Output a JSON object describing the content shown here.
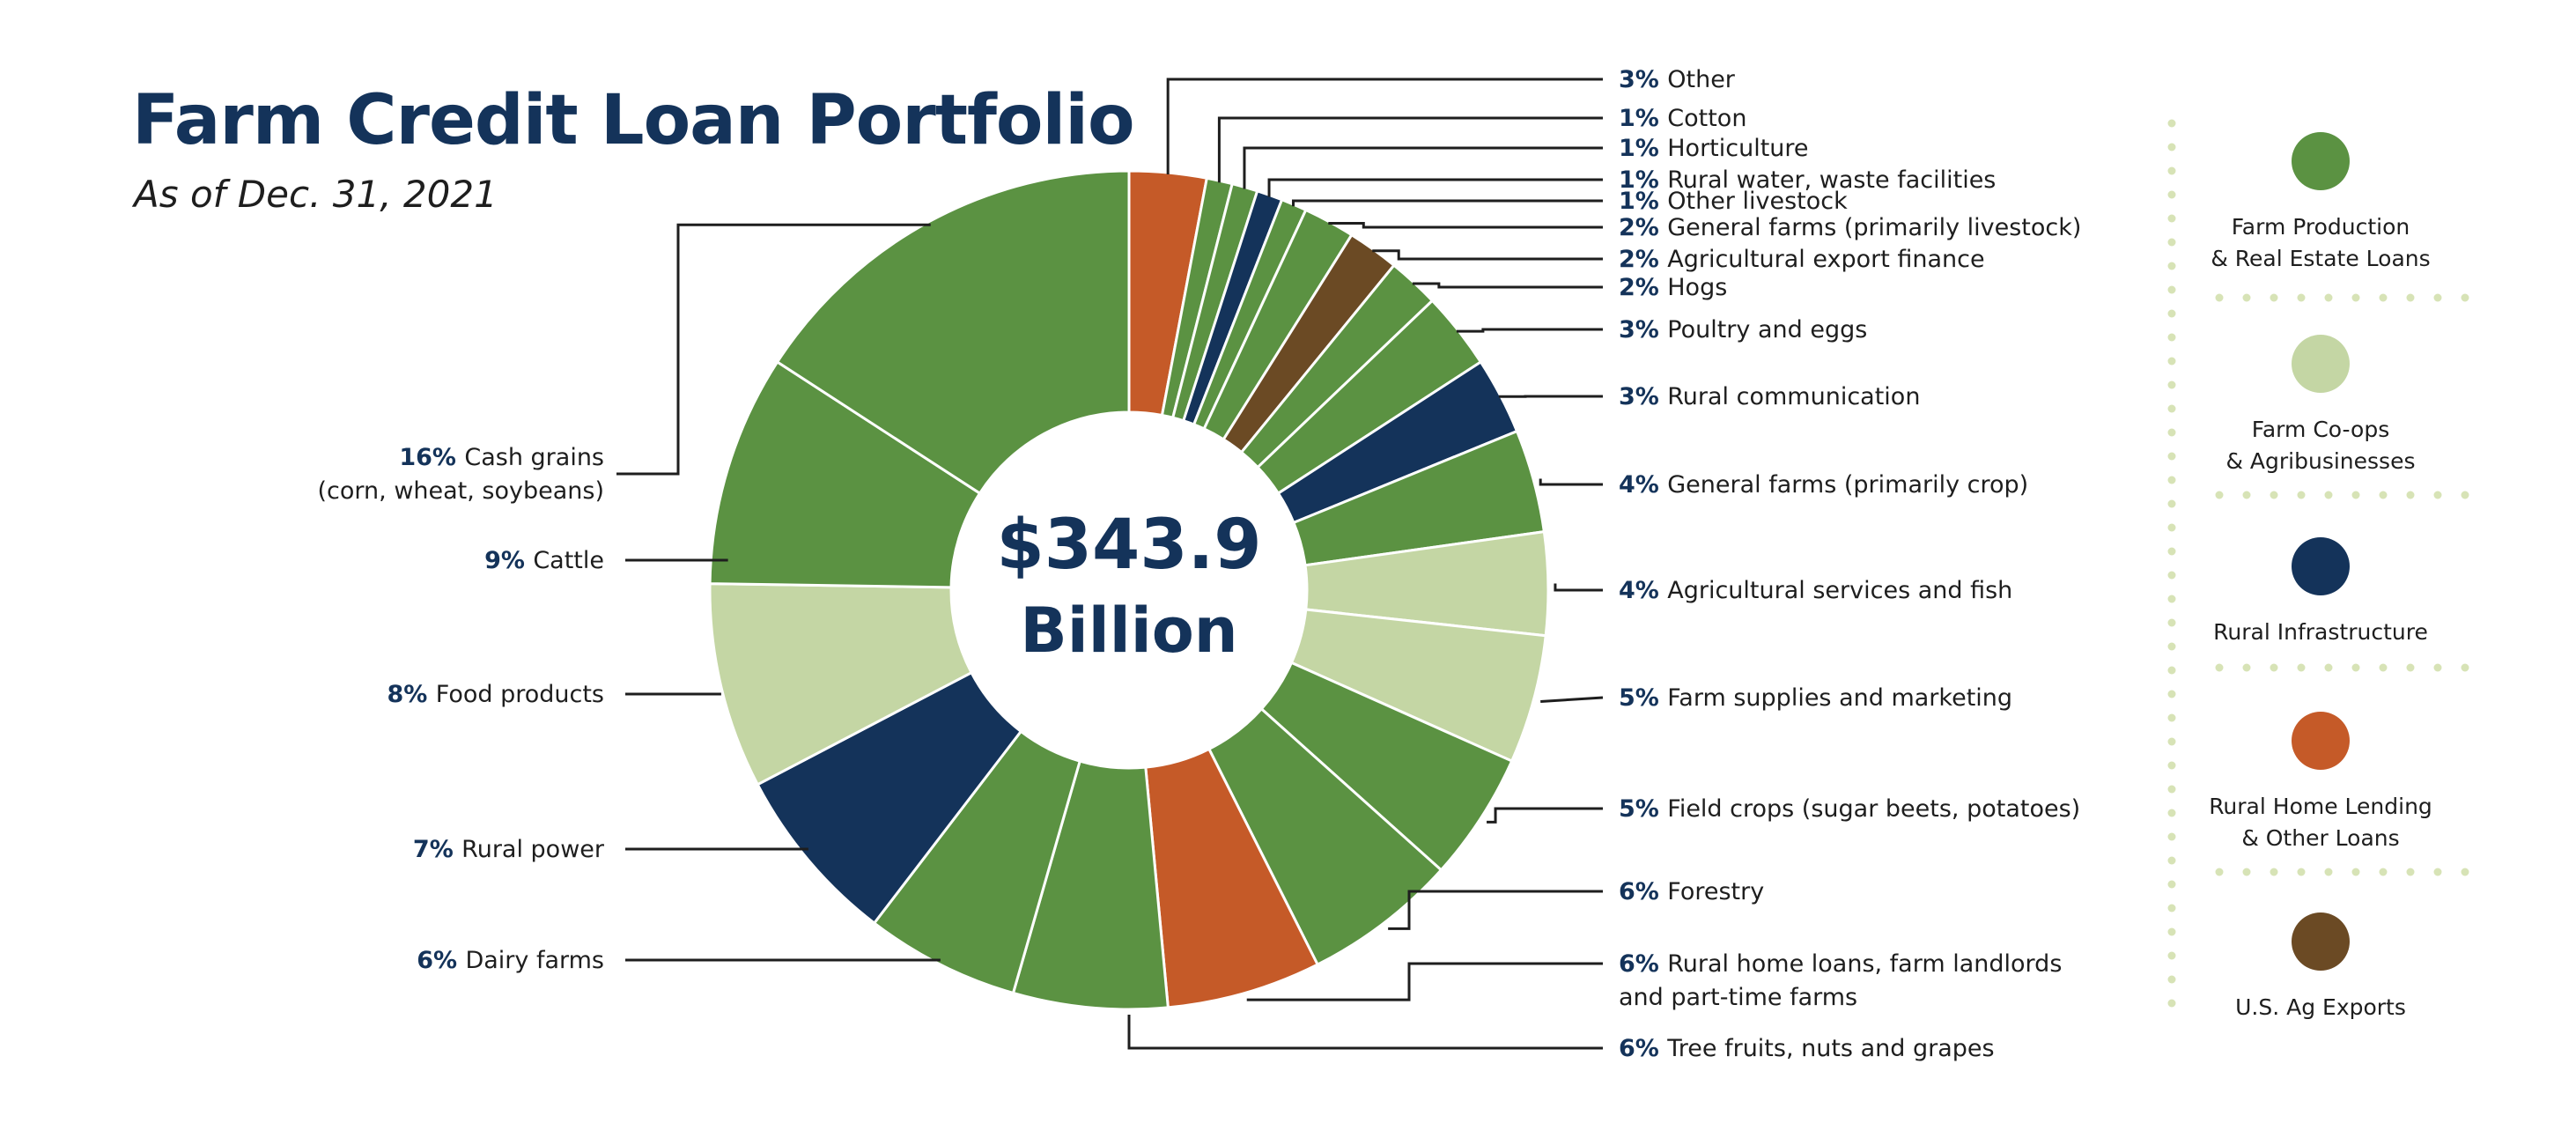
{
  "title": "Farm Credit Loan Portfolio",
  "subtitle": "As of Dec. 31, 2021",
  "center": {
    "line1": "$343.9",
    "line2": "Billion"
  },
  "colors": {
    "farm_production": "#5b9242",
    "coops": "#c4d6a4",
    "rural_infrastructure": "#14335a",
    "rural_home": "#c55a28",
    "ag_exports": "#6b4a24",
    "leader": "#1e1e1e",
    "legend_dots": "#d7e3b6"
  },
  "legend": [
    {
      "label": "Farm Production\n& Real Estate Loans",
      "color": "#5b9242"
    },
    {
      "label": "Farm Co-ops\n& Agribusinesses",
      "color": "#c4d6a4"
    },
    {
      "label": "Rural Infrastructure",
      "color": "#14335a"
    },
    {
      "label": "Rural Home Lending\n& Other Loans",
      "color": "#c55a28"
    },
    {
      "label": "U.S. Ag Exports",
      "color": "#6b4a24"
    }
  ],
  "chart_data": {
    "type": "pie",
    "donut": true,
    "total_label": "$343.9 Billion",
    "slices": [
      {
        "pct": "3%",
        "label": "Other",
        "value": 3,
        "group": "rural_home"
      },
      {
        "pct": "1%",
        "label": "Cotton",
        "value": 1,
        "group": "farm_production"
      },
      {
        "pct": "1%",
        "label": "Horticulture",
        "value": 1,
        "group": "farm_production"
      },
      {
        "pct": "1%",
        "label": "Rural water, waste facilities",
        "value": 1,
        "group": "rural_infrastructure"
      },
      {
        "pct": "1%",
        "label": "Other livestock",
        "value": 1,
        "group": "farm_production"
      },
      {
        "pct": "2%",
        "label": "General farms (primarily livestock)",
        "value": 2,
        "group": "farm_production"
      },
      {
        "pct": "2%",
        "label": "Agricultural export finance",
        "value": 2,
        "group": "ag_exports"
      },
      {
        "pct": "2%",
        "label": "Hogs",
        "value": 2,
        "group": "farm_production"
      },
      {
        "pct": "3%",
        "label": "Poultry and eggs",
        "value": 3,
        "group": "farm_production"
      },
      {
        "pct": "3%",
        "label": "Rural communication",
        "value": 3,
        "group": "rural_infrastructure"
      },
      {
        "pct": "4%",
        "label": "General farms (primarily crop)",
        "value": 4,
        "group": "farm_production"
      },
      {
        "pct": "4%",
        "label": "Agricultural services and fish",
        "value": 4,
        "group": "coops"
      },
      {
        "pct": "5%",
        "label": "Farm supplies and marketing",
        "value": 5,
        "group": "coops"
      },
      {
        "pct": "5%",
        "label": "Field crops (sugar beets, potatoes)",
        "value": 5,
        "group": "farm_production"
      },
      {
        "pct": "6%",
        "label": "Forestry",
        "value": 6,
        "group": "farm_production"
      },
      {
        "pct": "6%",
        "label": "Rural home loans, farm landlords\nand part-time farms",
        "value": 6,
        "group": "rural_home"
      },
      {
        "pct": "6%",
        "label": "Tree fruits, nuts and grapes",
        "value": 6,
        "group": "farm_production"
      },
      {
        "pct": "6%",
        "label": "Dairy farms",
        "value": 6,
        "group": "farm_production"
      },
      {
        "pct": "7%",
        "label": "Rural power",
        "value": 7,
        "group": "rural_infrastructure"
      },
      {
        "pct": "8%",
        "label": "Food products",
        "value": 8,
        "group": "coops"
      },
      {
        "pct": "9%",
        "label": "Cattle",
        "value": 9,
        "group": "farm_production"
      },
      {
        "pct": "16%",
        "label": "Cash grains\n(corn, wheat, soybeans)",
        "value": 16,
        "group": "farm_production"
      }
    ]
  }
}
